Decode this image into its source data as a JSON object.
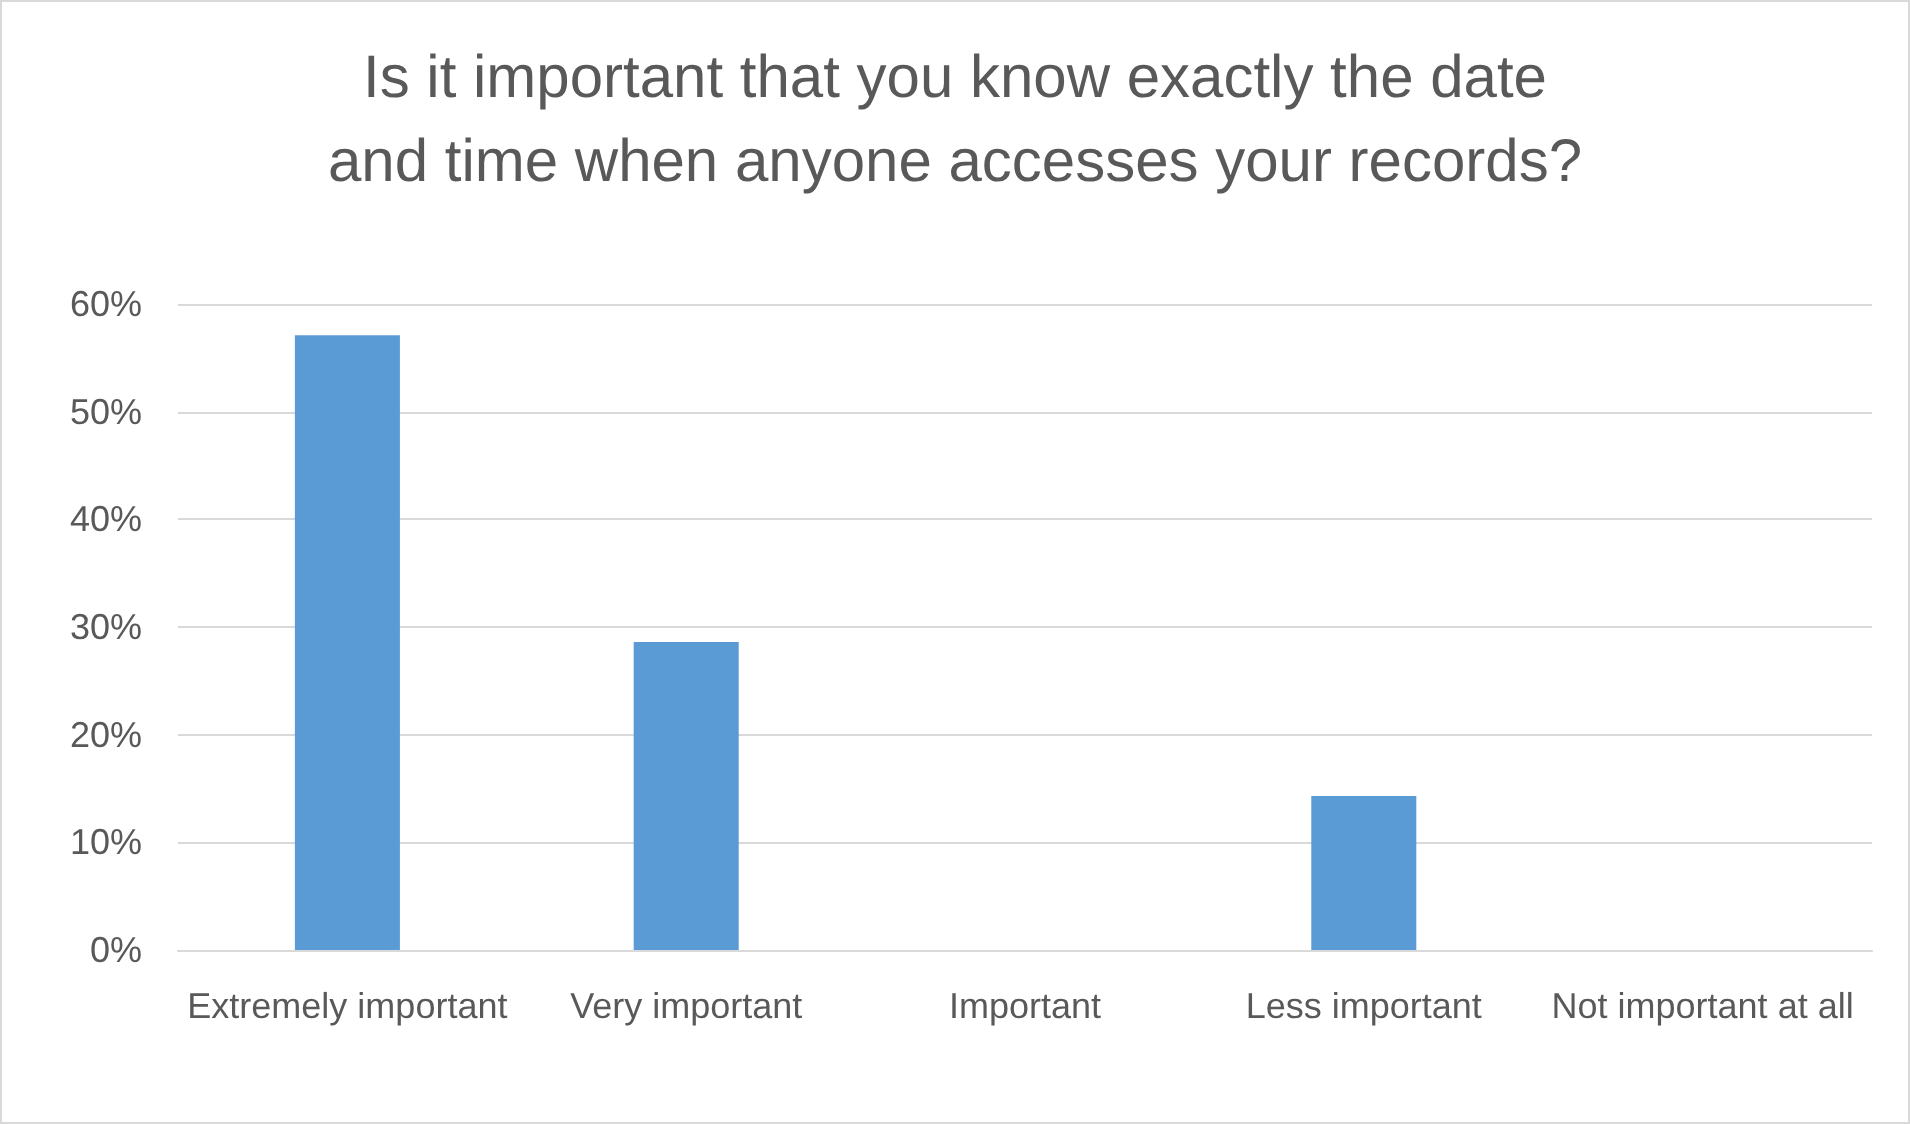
{
  "chart_data": {
    "type": "bar",
    "title": "Is it important that you know exactly the date\nand time when anyone accesses your records?",
    "categories": [
      "Extremely important",
      "Very important",
      "Important",
      "Less important",
      "Not important at all"
    ],
    "values": [
      57.1,
      28.6,
      0,
      14.3,
      0
    ],
    "color": "#5b9bd5",
    "ylim": [
      0,
      60
    ],
    "yticks": [
      {
        "value": 0,
        "label": "0%"
      },
      {
        "value": 10,
        "label": "10%"
      },
      {
        "value": 20,
        "label": "20%"
      },
      {
        "value": 30,
        "label": "30%"
      },
      {
        "value": 40,
        "label": "40%"
      },
      {
        "value": 50,
        "label": "50%"
      },
      {
        "value": 60,
        "label": "60%"
      }
    ],
    "grid": "y"
  }
}
